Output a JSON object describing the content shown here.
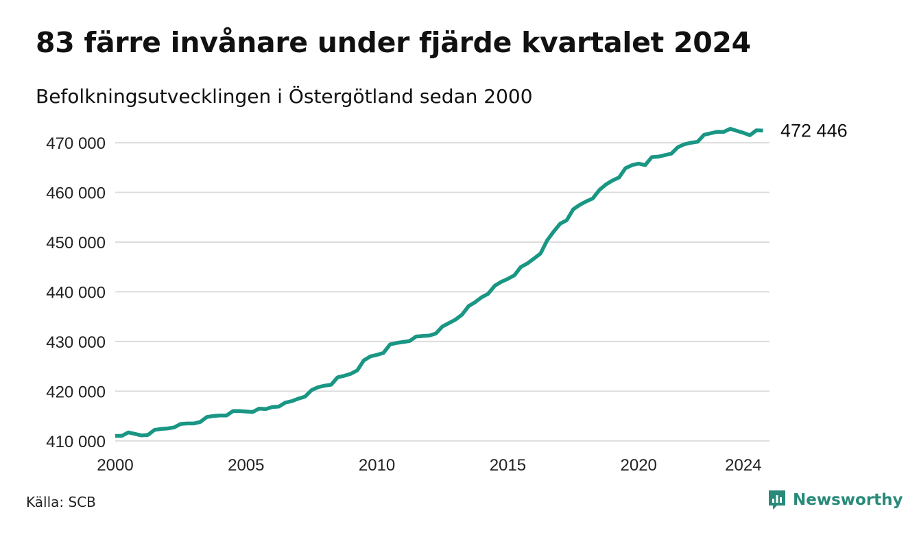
{
  "title": "83 färre invånare under fjärde kvartalet 2024",
  "subtitle": "Befolkningsutvecklingen i Östergötland sedan 2000",
  "source": "Källa: SCB",
  "brand": {
    "name": "Newsworthy",
    "color": "#2a8a7a",
    "icon": "newsworthy-logo-icon"
  },
  "chart_data": {
    "type": "line",
    "title": "83 färre invånare under fjärde kvartalet 2024",
    "subtitle": "Befolkningsutvecklingen i Östergötland sedan 2000",
    "xlim": [
      2000,
      2025
    ],
    "ylim": [
      409000,
      472500
    ],
    "yticks": [
      410000,
      420000,
      430000,
      440000,
      450000,
      460000,
      470000
    ],
    "ytick_labels": [
      "410 000",
      "420 000",
      "430 000",
      "440 000",
      "450 000",
      "460 000",
      "470 000"
    ],
    "xticks": [
      2000,
      2005,
      2010,
      2015,
      2020,
      2024
    ],
    "xtick_labels": [
      "2000",
      "2005",
      "2010",
      "2015",
      "2020",
      "2024"
    ],
    "grid": "horizontal",
    "line_color": "#1a9684",
    "end_label": "472 446",
    "series": [
      {
        "x": [
          2000.0,
          2000.25,
          2000.5,
          2000.75,
          2001.0,
          2001.25,
          2001.5,
          2001.75,
          2002.0,
          2002.25,
          2002.5,
          2002.75,
          2003.0,
          2003.25,
          2003.5,
          2003.75,
          2004.0,
          2004.25,
          2004.5,
          2004.75,
          2005.0,
          2005.25,
          2005.5,
          2005.75,
          2006.0,
          2006.25,
          2006.5,
          2006.75,
          2007.0,
          2007.25,
          2007.5,
          2007.75,
          2008.0,
          2008.25,
          2008.5,
          2008.75,
          2009.0,
          2009.25,
          2009.5,
          2009.75,
          2010.0,
          2010.25,
          2010.5,
          2010.75,
          2011.0,
          2011.25,
          2011.5,
          2011.75,
          2012.0,
          2012.25,
          2012.5,
          2012.75,
          2013.0,
          2013.25,
          2013.5,
          2013.75,
          2014.0,
          2014.25,
          2014.5,
          2014.75,
          2015.0,
          2015.25,
          2015.5,
          2015.75,
          2016.0,
          2016.25,
          2016.5,
          2016.75,
          2017.0,
          2017.25,
          2017.5,
          2017.75,
          2018.0,
          2018.25,
          2018.5,
          2018.75,
          2019.0,
          2019.25,
          2019.5,
          2019.75,
          2020.0,
          2020.25,
          2020.5,
          2020.75,
          2021.0,
          2021.25,
          2021.5,
          2021.75,
          2022.0,
          2022.25,
          2022.5,
          2022.75,
          2023.0,
          2023.25,
          2023.5,
          2023.75,
          2024.0,
          2024.25,
          2024.5,
          2024.75
        ],
        "values": [
          411000,
          411000,
          411700,
          411400,
          411100,
          411200,
          412200,
          412400,
          412500,
          412700,
          413400,
          413500,
          413500,
          413800,
          414800,
          415000,
          415100,
          415100,
          416000,
          416000,
          415900,
          415800,
          416500,
          416400,
          416800,
          416900,
          417700,
          418000,
          418500,
          418900,
          420200,
          420800,
          421100,
          421300,
          422800,
          423100,
          423500,
          424200,
          426200,
          427000,
          427300,
          427700,
          429400,
          429700,
          429900,
          430100,
          431000,
          431100,
          431200,
          431600,
          433000,
          433700,
          434400,
          435400,
          437100,
          437900,
          438900,
          439600,
          441200,
          442000,
          442600,
          443300,
          445000,
          445700,
          446700,
          447700,
          450300,
          452100,
          453700,
          454400,
          456600,
          457500,
          458200,
          458800,
          460500,
          461600,
          462400,
          463000,
          464900,
          465500,
          465800,
          465500,
          467100,
          467200,
          467500,
          467800,
          469100,
          469700,
          470000,
          470200,
          471600,
          471900,
          472200,
          472200,
          472800,
          472400,
          472000,
          471500,
          472500,
          472446
        ]
      }
    ]
  }
}
